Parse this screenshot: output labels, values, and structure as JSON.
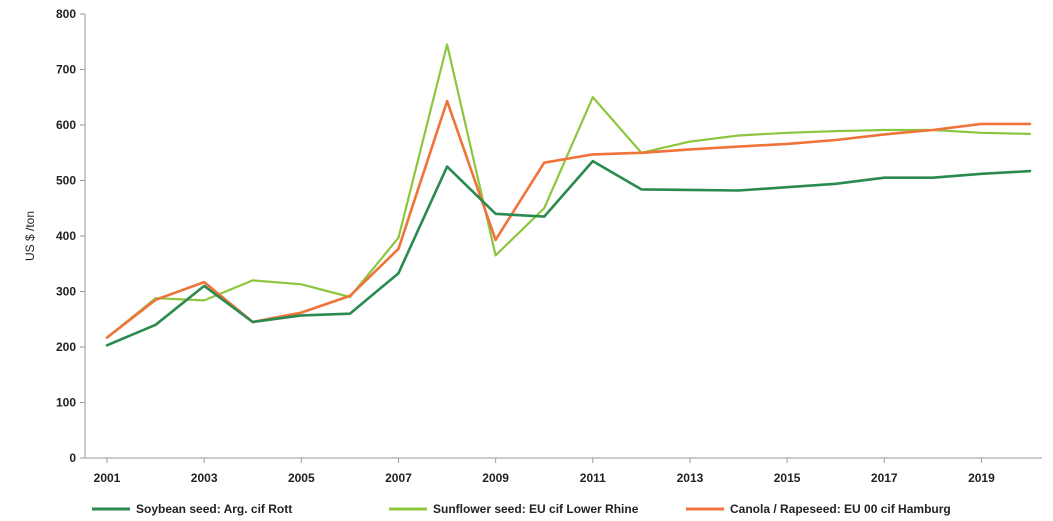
{
  "chart_data": {
    "type": "line",
    "title": "",
    "xlabel": "",
    "ylabel": "US $ /ton",
    "ylim": [
      0,
      800
    ],
    "yticks": [
      0,
      100,
      200,
      300,
      400,
      500,
      600,
      700,
      800
    ],
    "xlim": [
      2001,
      2020
    ],
    "x": [
      2001,
      2002,
      2003,
      2004,
      2005,
      2006,
      2007,
      2008,
      2009,
      2010,
      2011,
      2012,
      2013,
      2014,
      2015,
      2016,
      2017,
      2018,
      2019,
      2020
    ],
    "xtick_labels": [
      "2001",
      "2003",
      "2005",
      "2007",
      "2009",
      "2011",
      "2013",
      "2015",
      "2017",
      "2019"
    ],
    "grid": false,
    "legend_position": "bottom",
    "series": [
      {
        "name": "Soybean seed: Arg. cif Rott",
        "color": "#2a8a4f",
        "values": [
          203,
          240,
          310,
          245,
          257,
          260,
          333,
          525,
          440,
          435,
          535,
          484,
          483,
          482,
          488,
          494,
          505,
          505,
          512,
          517
        ]
      },
      {
        "name": "Sunflower seed: EU cif Lower Rhine",
        "color": "#8cc63f",
        "values": [
          217,
          288,
          284,
          320,
          313,
          290,
          397,
          745,
          365,
          450,
          650,
          550,
          570,
          581,
          586,
          589,
          591,
          591,
          586,
          584
        ]
      },
      {
        "name": "Canola / Rapeseed: EU 00 cif Hamburg",
        "color": "#f0733a",
        "values": [
          217,
          285,
          317,
          245,
          262,
          292,
          377,
          643,
          393,
          532,
          547,
          550,
          556,
          561,
          566,
          573,
          583,
          591,
          602,
          602
        ]
      }
    ]
  }
}
